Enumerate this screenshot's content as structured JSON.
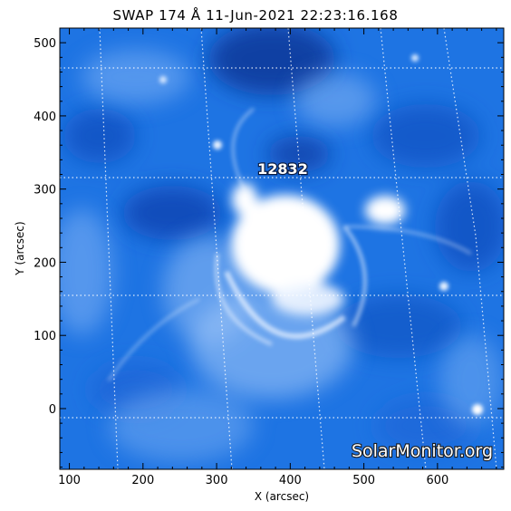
{
  "title": "SWAP 174 Å 11-Jun-2021 22:23:16.168",
  "axes": {
    "xlabel": "X (arcsec)",
    "ylabel": "Y (arcsec)",
    "xlim": [
      87,
      690
    ],
    "ylim": [
      -83,
      520
    ],
    "x_ticks": [
      "100",
      "200",
      "300",
      "400",
      "500",
      "600"
    ],
    "y_ticks": [
      "0",
      "100",
      "200",
      "300",
      "400",
      "500"
    ]
  },
  "active_region": {
    "label": "12832",
    "x": 380,
    "y": 330
  },
  "watermark": "SolarMonitor.org",
  "colors": {
    "base": "#1a6ee0",
    "dark": "#0c3fa8",
    "bright": "#ffffff",
    "grid": "#ffffff"
  }
}
